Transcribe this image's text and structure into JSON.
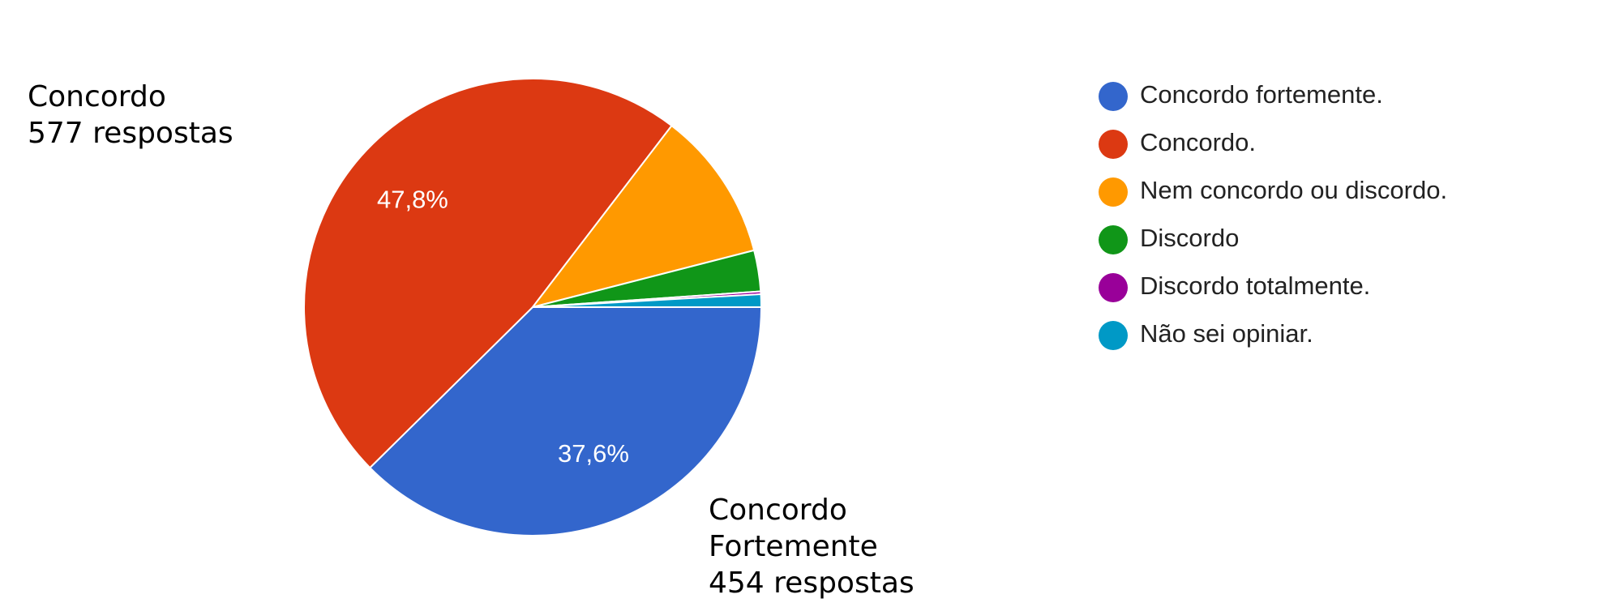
{
  "chart_data": {
    "type": "pie",
    "categories": [
      "Concordo fortemente.",
      "Concordo.",
      "Nem concordo ou discordo.",
      "Discordo",
      "Discordo totalmente.",
      "Não sei opiniar."
    ],
    "values": [
      37.6,
      47.8,
      10.6,
      2.9,
      0.2,
      0.9
    ],
    "value_labels": [
      "37,6%",
      "47,8%",
      null,
      null,
      null,
      null
    ],
    "colors": [
      "#3366cc",
      "#dc3912",
      "#ff9900",
      "#109618",
      "#990099",
      "#0099c6"
    ],
    "annotations": [
      {
        "lines": [
          "Concordo",
          "577 respostas"
        ]
      },
      {
        "lines": [
          "Concordo",
          "Fortemente",
          "454 respostas"
        ]
      }
    ]
  }
}
